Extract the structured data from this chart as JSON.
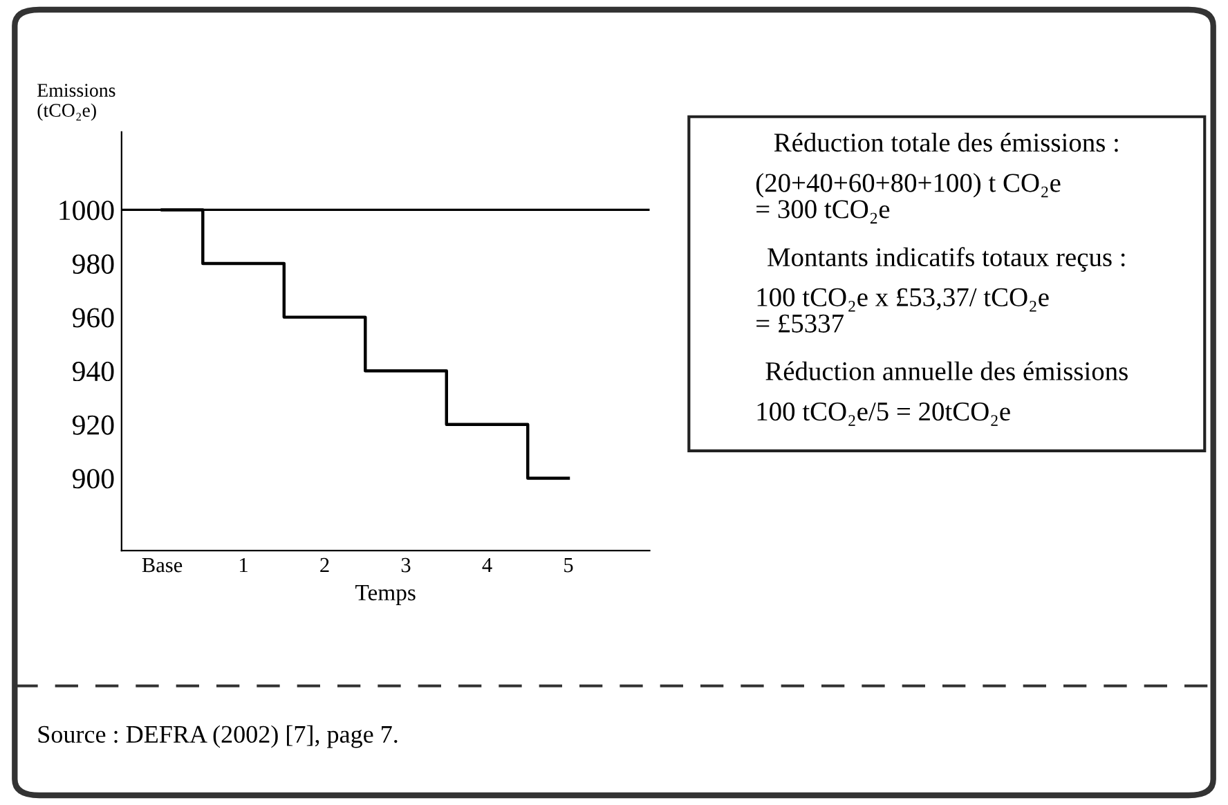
{
  "chart_data": {
    "type": "step",
    "ylabel": "Emissions\n(tCO₂e)",
    "xlabel": "Temps",
    "categories": [
      "Base",
      "1",
      "2",
      "3",
      "4",
      "5"
    ],
    "series": [
      {
        "color": "#000000",
        "values": [
          1000,
          980,
          960,
          940,
          920,
          900
        ]
      }
    ],
    "ylim": [
      873,
      1029
    ],
    "yticks": [
      900,
      920,
      940,
      960,
      980,
      1000
    ],
    "ref_lines": [
      {
        "axis": "y",
        "value": 1000,
        "color": "#000000"
      }
    ],
    "grid": false,
    "annotations": [
      "Réduction totale des émissions :",
      "(20+40+60+80+100) t CO₂e\n= 300 tCO₂e",
      "Montants indicatifs totaux reçus :",
      "100 tCO₂e x £53,37/ tCO₂e\n= £5337",
      "Réduction annuelle des émissions",
      "100 tCO₂e/5 = 20tCO₂e",
      "Source : DEFRA (2002) [7], page 7."
    ]
  }
}
